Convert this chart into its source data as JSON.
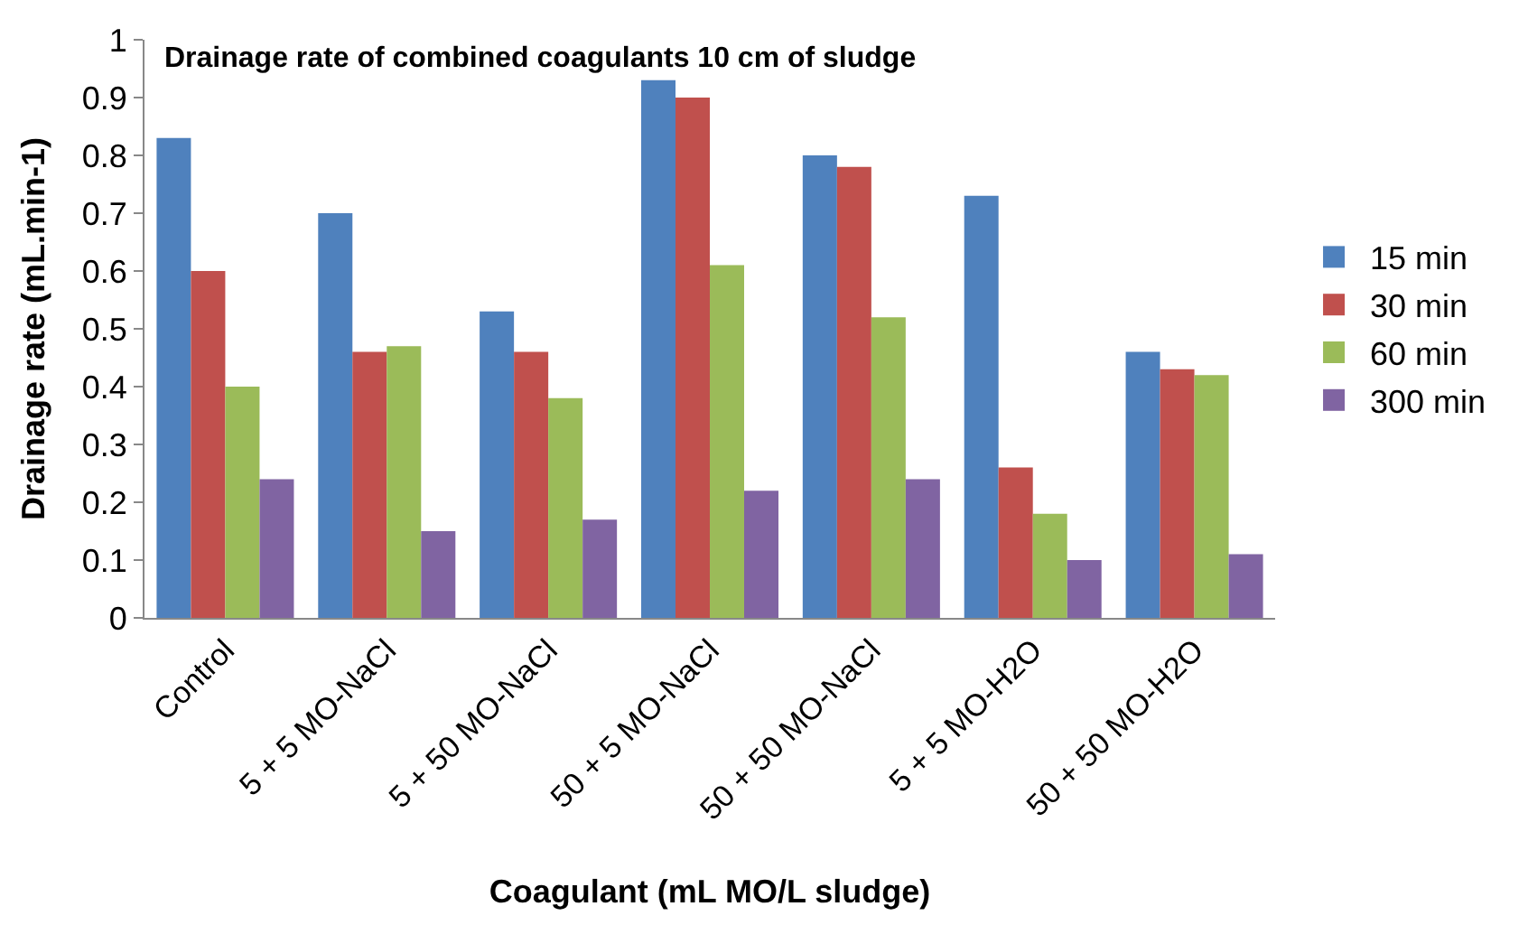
{
  "chart_data": {
    "type": "bar",
    "title": "Drainage rate of combined coagulants 10 cm of sludge",
    "xlabel": "Coagulant (mL MO/L sludge)",
    "ylabel": "Drainage rate (mL.min-1)",
    "categories": [
      "Control",
      "5 + 5 MO-NaCl",
      "5 + 50 MO-NaCl",
      "50 + 5 MO-NaCl",
      "50 + 50 MO-NaCl",
      "5 + 5 MO-H2O",
      "50 + 50 MO-H2O"
    ],
    "series": [
      {
        "name": "15 min",
        "color": "#4f81bd",
        "values": [
          0.83,
          0.7,
          0.53,
          0.93,
          0.8,
          0.73,
          0.46
        ]
      },
      {
        "name": "30 min",
        "color": "#c0504d",
        "values": [
          0.6,
          0.46,
          0.46,
          0.9,
          0.78,
          0.26,
          0.43
        ]
      },
      {
        "name": "60 min",
        "color": "#9bbb59",
        "values": [
          0.4,
          0.47,
          0.38,
          0.61,
          0.52,
          0.18,
          0.42
        ]
      },
      {
        "name": "300 min",
        "color": "#8064a2",
        "values": [
          0.24,
          0.15,
          0.17,
          0.22,
          0.24,
          0.1,
          0.11
        ]
      }
    ],
    "ylim": [
      0,
      1
    ],
    "yticks": [
      0,
      0.1,
      0.2,
      0.3,
      0.4,
      0.5,
      0.6,
      0.7,
      0.8,
      0.9,
      1
    ],
    "legend": "right"
  }
}
